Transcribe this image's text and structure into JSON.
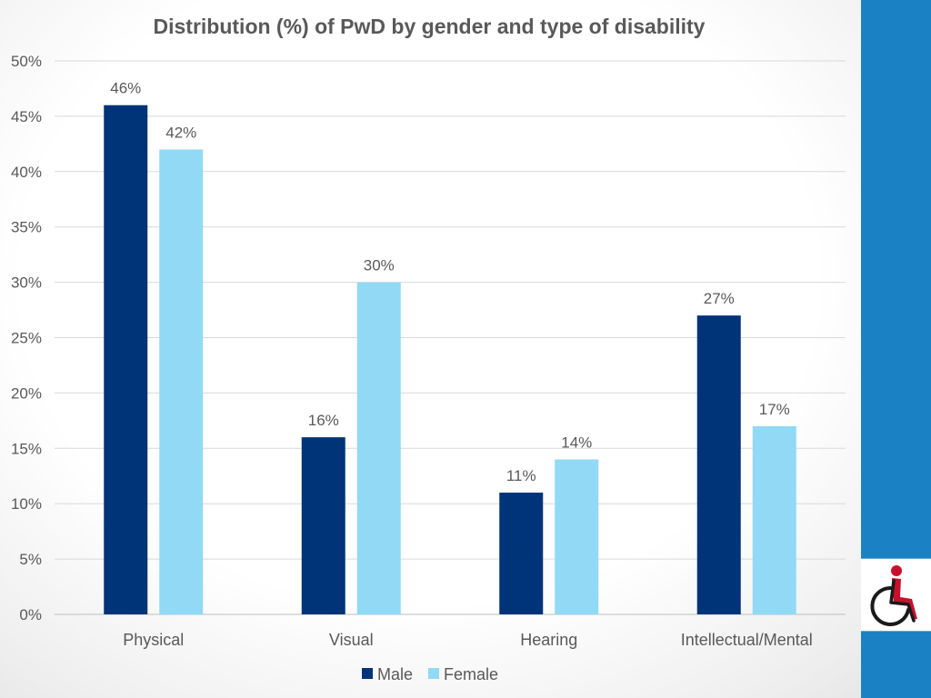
{
  "colors": {
    "male": "#003478",
    "female": "#92d9f5",
    "sidebar": "#1a82c4",
    "text": "#595959",
    "title": "#595959",
    "grid": "#d9d9d9"
  },
  "logo": {
    "icon": "wheelchair-icon"
  },
  "chart_data": {
    "type": "bar",
    "title": "Distribution (%) of PwD by gender and type of disability",
    "xlabel": "",
    "ylabel": "",
    "categories": [
      "Physical",
      "Visual",
      "Hearing",
      "Intellectual/Mental"
    ],
    "series": [
      {
        "name": "Male",
        "values": [
          46,
          16,
          11,
          27
        ],
        "labels": [
          "46%",
          "16%",
          "11%",
          "27%"
        ]
      },
      {
        "name": "Female",
        "values": [
          42,
          30,
          14,
          17
        ],
        "labels": [
          "42%",
          "30%",
          "14%",
          "17%"
        ]
      }
    ],
    "ylim": [
      0,
      50
    ],
    "yticks": [
      0,
      5,
      10,
      15,
      20,
      25,
      30,
      35,
      40,
      45,
      50
    ],
    "ytick_labels": [
      "0%",
      "5%",
      "10%",
      "15%",
      "20%",
      "25%",
      "30%",
      "35%",
      "40%",
      "45%",
      "50%"
    ],
    "grid": true,
    "legend": "bottom"
  }
}
